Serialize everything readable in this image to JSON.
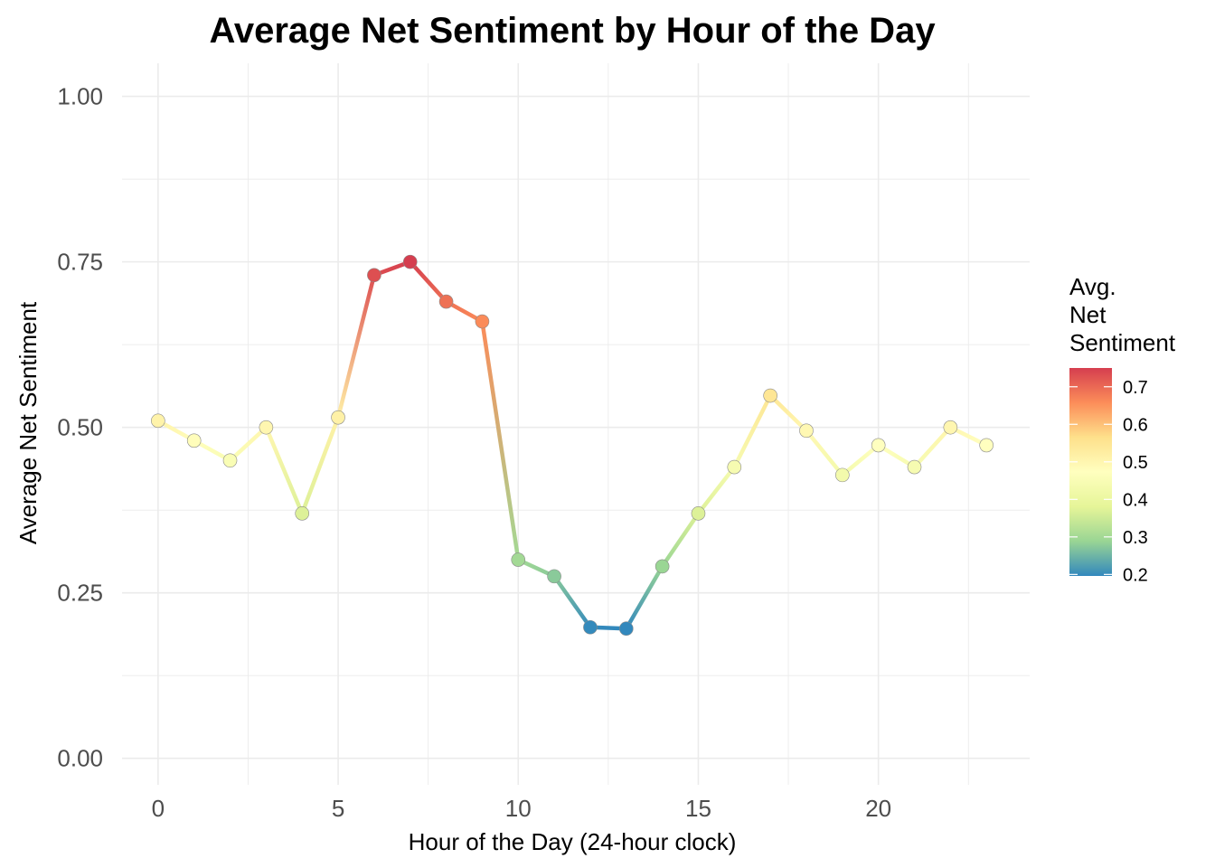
{
  "chart_data": {
    "type": "line",
    "title": "Average Net Sentiment by Hour of the Day",
    "xlabel": "Hour of the Day (24-hour clock)",
    "ylabel": "Average Net Sentiment",
    "xlim": [
      -1,
      24.2
    ],
    "ylim": [
      -0.04,
      1.05
    ],
    "x_ticks": [
      0,
      5,
      10,
      15,
      20
    ],
    "x_tick_labels": [
      "0",
      "5",
      "10",
      "15",
      "20"
    ],
    "y_ticks": [
      0,
      0.25,
      0.5,
      0.75,
      1.0
    ],
    "y_tick_labels": [
      "0.00",
      "0.25",
      "0.50",
      "0.75",
      "1.00"
    ],
    "grid": true,
    "x": [
      0,
      1,
      2,
      3,
      4,
      5,
      6,
      7,
      8,
      9,
      10,
      11,
      12,
      13,
      14,
      15,
      16,
      17,
      18,
      19,
      20,
      21,
      22,
      23
    ],
    "values": [
      0.51,
      0.48,
      0.45,
      0.5,
      0.37,
      0.515,
      0.73,
      0.75,
      0.69,
      0.66,
      0.3,
      0.275,
      0.198,
      0.196,
      0.29,
      0.37,
      0.44,
      0.548,
      0.495,
      0.428,
      0.473,
      0.44,
      0.5,
      0.473
    ],
    "color_scale": {
      "title_lines": [
        "Avg.",
        "Net",
        "Sentiment"
      ],
      "min": 0.196,
      "max": 0.75,
      "ticks": [
        0.2,
        0.3,
        0.4,
        0.5,
        0.6,
        0.7
      ],
      "tick_labels": [
        "0.2",
        "0.3",
        "0.4",
        "0.5",
        "0.6",
        "0.7"
      ],
      "palette": [
        "#3288bd",
        "#99d594",
        "#e6f598",
        "#ffffbf",
        "#fee08b",
        "#fc8d59",
        "#d53e4f"
      ],
      "placement": "right"
    }
  }
}
